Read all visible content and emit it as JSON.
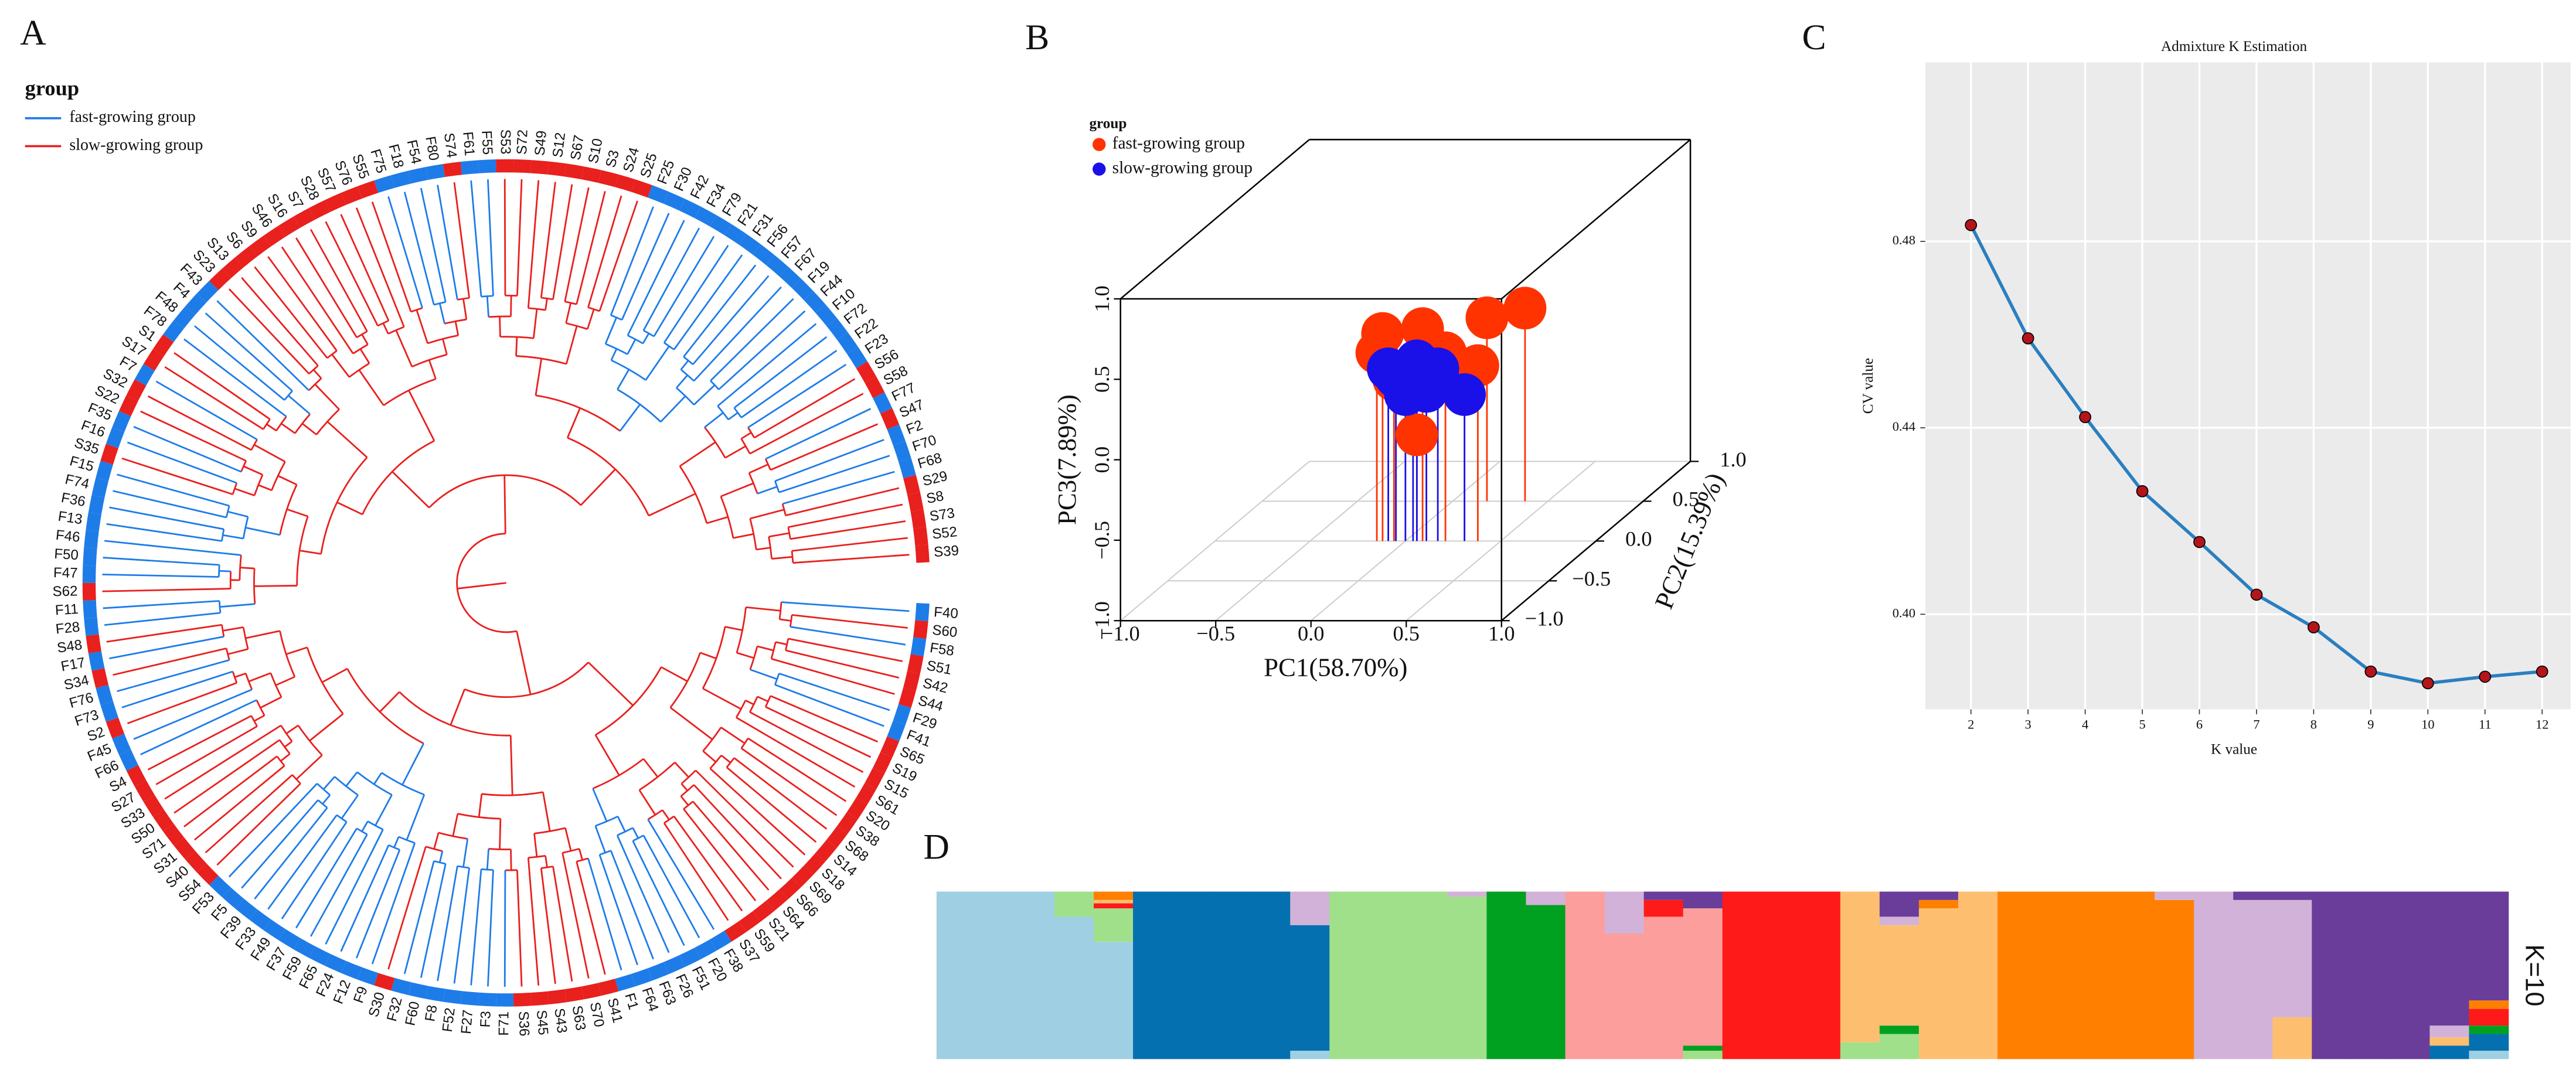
{
  "chart_data": [
    {
      "type": "tree",
      "panel": "A",
      "legend_title": "group",
      "series": [
        {
          "name": "fast-growing group",
          "color": "#1e7ce8"
        },
        {
          "name": "slow-growing group",
          "color": "#e8201e"
        }
      ],
      "leaves": [
        "F40",
        "S60",
        "F58",
        "S51",
        "S42",
        "S44",
        "F29",
        "F41",
        "S65",
        "S19",
        "S15",
        "S61",
        "S20",
        "S38",
        "S68",
        "S14",
        "S18",
        "S69",
        "S66",
        "S64",
        "S21",
        "S59",
        "S37",
        "F38",
        "F20",
        "F51",
        "F26",
        "F63",
        "F64",
        "F1",
        "S41",
        "S70",
        "S63",
        "S43",
        "S45",
        "S36",
        "F71",
        "F3",
        "F27",
        "F52",
        "F8",
        "F60",
        "F32",
        "S30",
        "F9",
        "F12",
        "F24",
        "F65",
        "F59",
        "F37",
        "F49",
        "F33",
        "F39",
        "F5",
        "F53",
        "S54",
        "S40",
        "S31",
        "S71",
        "S50",
        "S33",
        "S27",
        "S4",
        "F66",
        "F45",
        "S2",
        "F73",
        "F76",
        "S34",
        "F17",
        "S48",
        "F28",
        "F11",
        "S62",
        "F47",
        "F50",
        "F46",
        "F13",
        "F36",
        "F74",
        "F15",
        "S35",
        "F16",
        "F35",
        "S22",
        "S32",
        "F7",
        "S17",
        "S1",
        "F78",
        "F48",
        "F4",
        "F43",
        "S23",
        "S13",
        "S6",
        "S9",
        "S46",
        "S16",
        "S7",
        "S28",
        "S57",
        "S76",
        "S55",
        "F75",
        "F18",
        "F54",
        "F80",
        "S74",
        "F61",
        "F55",
        "S53",
        "S72",
        "S49",
        "S12",
        "S67",
        "S10",
        "S3",
        "S24",
        "S25",
        "F25",
        "F30",
        "F42",
        "F34",
        "F79",
        "F21",
        "F31",
        "F56",
        "F57",
        "F67",
        "F19",
        "F44",
        "F10",
        "F72",
        "F22",
        "F23",
        "S56",
        "S58",
        "F77",
        "S47",
        "F2",
        "F70",
        "F68",
        "S29",
        "S8",
        "S73",
        "S52",
        "S39"
      ],
      "leaf_groups": [
        0,
        1,
        0,
        1,
        1,
        1,
        0,
        0,
        1,
        1,
        1,
        1,
        1,
        1,
        1,
        1,
        1,
        1,
        1,
        1,
        1,
        1,
        1,
        0,
        0,
        0,
        0,
        0,
        0,
        0,
        1,
        1,
        1,
        1,
        1,
        1,
        0,
        0,
        0,
        0,
        0,
        0,
        0,
        1,
        0,
        0,
        0,
        0,
        0,
        0,
        0,
        0,
        0,
        0,
        0,
        1,
        1,
        1,
        1,
        1,
        1,
        1,
        1,
        0,
        0,
        1,
        0,
        0,
        1,
        0,
        1,
        0,
        0,
        1,
        0,
        0,
        0,
        0,
        0,
        0,
        0,
        1,
        0,
        0,
        1,
        1,
        0,
        1,
        1,
        0,
        0,
        0,
        0,
        1,
        1,
        1,
        1,
        1,
        1,
        1,
        1,
        1,
        1,
        1,
        0,
        0,
        0,
        0,
        1,
        0,
        0,
        1,
        1,
        1,
        1,
        1,
        1,
        1,
        1,
        1,
        0,
        0,
        0,
        0,
        0,
        0,
        0,
        0,
        0,
        0,
        0,
        0,
        0,
        0,
        0,
        0,
        1,
        1,
        0,
        1,
        0,
        0,
        0,
        1,
        1,
        1,
        1,
        1
      ]
    },
    {
      "type": "scatter3d",
      "panel": "B",
      "legend_title": "group",
      "xlabel": "PC1(58.70%)",
      "ylabel": "PC2(15.39%)",
      "zlabel": "PC3(7.89%)",
      "xlim": [
        -1,
        1
      ],
      "ylim": [
        -1,
        1
      ],
      "zlim": [
        -1,
        1
      ],
      "xticks": [
        {
          "value": -1,
          "label": "−1.0"
        },
        {
          "value": -0.5,
          "label": "−0.5"
        },
        {
          "value": 0,
          "label": "0.0"
        },
        {
          "value": 0.5,
          "label": "0.5"
        },
        {
          "value": 1,
          "label": "1.0"
        }
      ],
      "yticks": [
        {
          "value": -1,
          "label": "−1.0"
        },
        {
          "value": -0.5,
          "label": "−0.5"
        },
        {
          "value": 0,
          "label": "0.0"
        },
        {
          "value": 0.5,
          "label": "0.5"
        },
        {
          "value": 1,
          "label": "1.0"
        }
      ],
      "zticks": [
        {
          "value": -1,
          "label": "−1.0"
        },
        {
          "value": -0.5,
          "label": "−0.5"
        },
        {
          "value": 0,
          "label": "0.0"
        },
        {
          "value": 0.5,
          "label": "0.5"
        },
        {
          "value": 1,
          "label": "1.0"
        }
      ],
      "series": [
        {
          "name": "fast-growing group",
          "color": "#ff3300",
          "x": [
            -0.12,
            0.09,
            0.18,
            0.38,
            0.38,
            0.06,
            -0.06,
            -0.15,
            0.21
          ],
          "y": [
            0,
            0,
            0.5,
            0.5,
            0,
            0,
            0,
            0,
            0
          ],
          "z": [
            0.29,
            0.32,
            0.14,
            0.2,
            0.09,
            -0.34,
            0,
            0.17,
            0.17
          ]
        },
        {
          "name": "slow-growing group",
          "color": "#1a10e8",
          "x": [
            -0.09,
            0.06,
            0.11,
            0.31,
            0,
            -0.05,
            0.17,
            0.04
          ],
          "y": [
            0,
            0,
            0,
            0,
            0,
            0,
            0,
            0
          ],
          "z": [
            0.07,
            0.12,
            -0.07,
            -0.09,
            -0.09,
            0.02,
            0.07,
            0
          ]
        }
      ]
    },
    {
      "type": "line",
      "panel": "C",
      "title": "Admixture K Estimation",
      "xlabel": "K value",
      "ylabel": "CV value",
      "x": [
        2,
        3,
        4,
        5,
        6,
        7,
        8,
        9,
        10,
        11,
        12
      ],
      "values": [
        0.4835,
        0.4592,
        0.4423,
        0.4264,
        0.4155,
        0.4042,
        0.3972,
        0.3877,
        0.3852,
        0.3866,
        0.3877
      ],
      "xlim": [
        1.2,
        12.5
      ],
      "ylim": [
        0.3796,
        0.5184
      ],
      "xticks": [
        2,
        3,
        4,
        5,
        6,
        7,
        8,
        9,
        10,
        11,
        12
      ],
      "yticks": [
        {
          "value": 0.4,
          "label": "0.40"
        },
        0.44,
        0.48
      ],
      "grid": true,
      "color": "#2a7fc0",
      "marker_color": "#b3151a"
    },
    {
      "type": "structure",
      "panel": "D",
      "label": "K=10",
      "colors": [
        "#9ecfe3",
        "#0570b0",
        "#a0e08a",
        "#00a020",
        "#fb9e9c",
        "#ff1a1a",
        "#fdbf6f",
        "#ff8000",
        "#d2b2d8",
        "#6a3d9a"
      ],
      "proportions": [
        [
          1,
          0,
          0,
          0,
          0,
          0,
          0,
          0,
          0,
          0
        ],
        [
          1,
          0,
          0,
          0,
          0,
          0,
          0,
          0,
          0,
          0
        ],
        [
          1,
          0,
          0,
          0,
          0,
          0,
          0,
          0,
          0,
          0
        ],
        [
          0.85,
          0,
          0.15,
          0,
          0,
          0,
          0,
          0,
          0,
          0
        ],
        [
          0.7,
          0,
          0.2,
          0,
          0,
          0.03,
          0.02,
          0.05,
          0,
          0
        ],
        [
          0,
          1,
          0,
          0,
          0,
          0,
          0,
          0,
          0,
          0
        ],
        [
          0,
          1,
          0,
          0,
          0,
          0,
          0,
          0,
          0,
          0
        ],
        [
          0,
          1,
          0,
          0,
          0,
          0,
          0,
          0,
          0,
          0
        ],
        [
          0,
          1,
          0,
          0,
          0,
          0,
          0,
          0,
          0,
          0
        ],
        [
          0.05,
          0.75,
          0,
          0,
          0,
          0,
          0,
          0,
          0.2,
          0
        ],
        [
          0,
          0,
          1,
          0,
          0,
          0,
          0,
          0,
          0,
          0
        ],
        [
          0,
          0,
          1,
          0,
          0,
          0,
          0,
          0,
          0,
          0
        ],
        [
          0,
          0,
          1,
          0,
          0,
          0,
          0,
          0,
          0,
          0
        ],
        [
          0,
          0,
          0.97,
          0,
          0,
          0,
          0,
          0,
          0.03,
          0
        ],
        [
          0,
          0,
          0,
          1,
          0,
          0,
          0,
          0,
          0,
          0
        ],
        [
          0,
          0,
          0,
          0.92,
          0,
          0,
          0,
          0,
          0.08,
          0
        ],
        [
          0,
          0,
          0,
          0,
          1,
          0,
          0,
          0,
          0,
          0
        ],
        [
          0,
          0,
          0,
          0,
          0.75,
          0,
          0,
          0,
          0.25,
          0
        ],
        [
          0,
          0,
          0,
          0,
          0.85,
          0.1,
          0,
          0,
          0,
          0.05
        ],
        [
          0,
          0,
          0.05,
          0.03,
          0.82,
          0,
          0,
          0,
          0,
          0.1
        ],
        [
          0,
          0,
          0,
          0,
          0,
          1,
          0,
          0,
          0,
          0
        ],
        [
          0,
          0,
          0,
          0,
          0,
          1,
          0,
          0,
          0,
          0
        ],
        [
          0,
          0,
          0,
          0,
          0,
          1,
          0,
          0,
          0,
          0
        ],
        [
          0,
          0,
          0.1,
          0,
          0,
          0,
          0.9,
          0,
          0,
          0
        ],
        [
          0,
          0,
          0.15,
          0.05,
          0,
          0,
          0.6,
          0,
          0.05,
          0.15
        ],
        [
          0,
          0,
          0,
          0,
          0,
          0,
          0.9,
          0.05,
          0,
          0.05
        ],
        [
          0,
          0,
          0,
          0,
          0,
          0,
          1,
          0,
          0,
          0
        ],
        [
          0,
          0,
          0,
          0,
          0,
          0,
          0,
          1,
          0,
          0
        ],
        [
          0,
          0,
          0,
          0,
          0,
          0,
          0,
          1,
          0,
          0
        ],
        [
          0,
          0,
          0,
          0,
          0,
          0,
          0,
          1,
          0,
          0
        ],
        [
          0,
          0,
          0,
          0,
          0,
          0,
          0,
          1,
          0,
          0
        ],
        [
          0,
          0,
          0,
          0,
          0,
          0,
          0,
          0.95,
          0.05,
          0
        ],
        [
          0,
          0,
          0,
          0,
          0,
          0,
          0,
          0,
          1,
          0
        ],
        [
          0,
          0,
          0,
          0,
          0,
          0,
          0,
          0,
          0.95,
          0.05
        ],
        [
          0,
          0,
          0,
          0,
          0,
          0,
          0.25,
          0,
          0.7,
          0.05
        ],
        [
          0,
          0,
          0,
          0,
          0,
          0,
          0,
          0,
          0,
          1
        ],
        [
          0,
          0,
          0,
          0,
          0,
          0,
          0,
          0,
          0,
          1
        ],
        [
          0,
          0,
          0,
          0,
          0,
          0,
          0,
          0,
          0,
          1
        ],
        [
          0,
          0.08,
          0,
          0,
          0,
          0,
          0.05,
          0,
          0.07,
          0.8
        ],
        [
          0.05,
          0.1,
          0,
          0.05,
          0,
          0.1,
          0,
          0.05,
          0,
          0.65
        ]
      ]
    }
  ]
}
